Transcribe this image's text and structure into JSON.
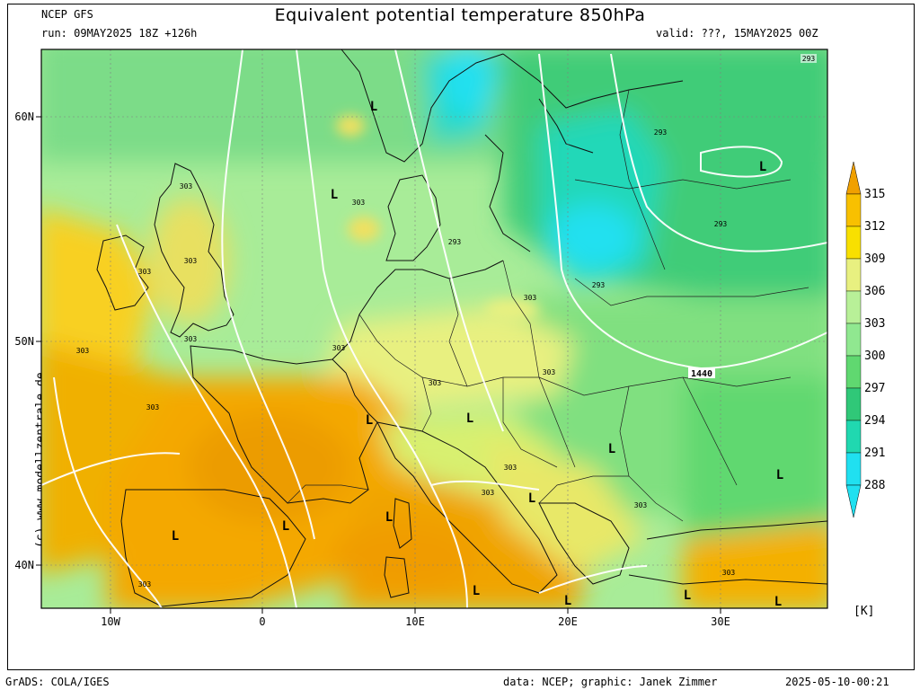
{
  "header": {
    "source": "NCEP GFS",
    "run": "run: 09MAY2025 18Z +126h",
    "title": "Equivalent potential temperature 850hPa",
    "valid": "valid: ???, 15MAY2025 00Z"
  },
  "axes": {
    "lat_labels": [
      "60N",
      "50N",
      "40N"
    ],
    "lon_labels": [
      "10W",
      "0",
      "10E",
      "20E",
      "30E"
    ]
  },
  "colorbar": {
    "unit": "[K]",
    "levels": [
      "315",
      "312",
      "309",
      "306",
      "303",
      "300",
      "297",
      "294",
      "291",
      "288"
    ],
    "colors": [
      "#f0a000",
      "#f8c000",
      "#f8e000",
      "#e8f080",
      "#b8f098",
      "#90e890",
      "#60d870",
      "#30c878",
      "#20d8b0",
      "#20e0f0"
    ]
  },
  "map": {
    "contour_labels": [
      "293",
      "303",
      "303",
      "293",
      "303",
      "293",
      "293",
      "303",
      "303",
      "303",
      "303",
      "303",
      "303",
      "303",
      "303",
      "303",
      "303",
      "303",
      "1440"
    ],
    "pressure_lows": [
      "L",
      "L",
      "L",
      "L",
      "L",
      "L",
      "L",
      "L",
      "L",
      "L",
      "L",
      "L",
      "L",
      "L",
      "L"
    ]
  },
  "footer": {
    "grads": "GrADS: COLA/IGES",
    "credit": "data: NCEP; graphic: Janek Zimmer",
    "timestamp": "2025-05-10-00:21",
    "copyright": "(c)  www.modellzentrale.de"
  }
}
